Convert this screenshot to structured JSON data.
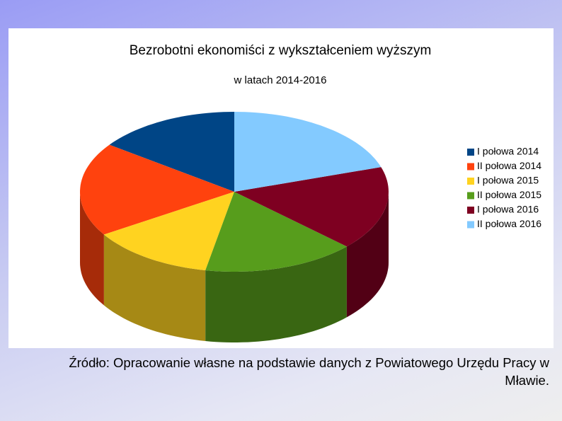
{
  "chart_data": {
    "type": "pie",
    "title": "Bezrobotni ekonomiści z wykształceniem wyższym",
    "subtitle": "w latach 2014-2016",
    "categories": [
      "I połowa 2014",
      "II połowa 2014",
      "I połowa 2015",
      "II połowa 2015",
      "I połowa 2016",
      "II połowa 2016"
    ],
    "values": [
      15,
      19,
      13,
      16,
      17,
      20
    ],
    "colors": [
      "#004586",
      "#ff420e",
      "#ffd320",
      "#579d1c",
      "#7e0021",
      "#83caff"
    ]
  },
  "source": "Źródło: Opracowanie własne na podstawie danych z Powiatowego Urzędu Pracy w Mławie."
}
